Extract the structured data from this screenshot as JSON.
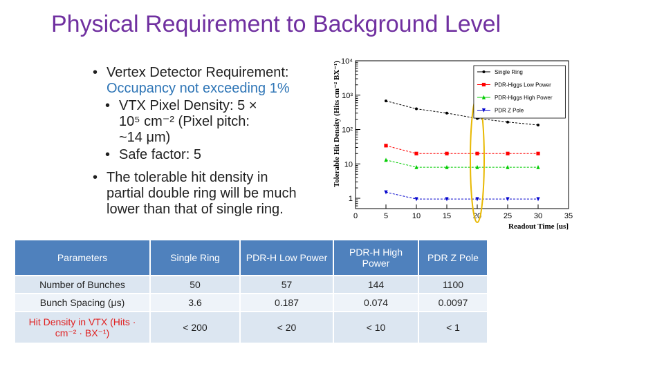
{
  "slide": {
    "title": "Physical Requirement to Background Level",
    "bullets": {
      "b1_line1": "Vertex Detector Requirement:",
      "b1_line2": "Occupancy not exceeding 1%",
      "b2_line1": "VTX Pixel Density: 5 ×",
      "b2_line2": "10⁵ cm⁻² (Pixel pitch:",
      "b2_line3": "~14 μm)",
      "b3": "Safe factor: 5",
      "b4_line1": "The tolerable hit density in",
      "b4_line2": "partial double ring will be much",
      "b4_line3": "lower than that of single ring."
    }
  },
  "table": {
    "headers": [
      "Parameters",
      "Single Ring",
      "PDR-H Low Power",
      "PDR-H High Power",
      "PDR Z Pole"
    ],
    "rows": [
      [
        "Number of Bunches",
        "50",
        "57",
        "144",
        "1100"
      ],
      [
        "Bunch Spacing (μs)",
        "3.6",
        "0.187",
        "0.074",
        "0.0097"
      ],
      [
        "Hit Density in VTX (Hits · cm⁻² · BX⁻¹)",
        "< 200",
        "< 20",
        "< 10",
        "< 1"
      ]
    ]
  },
  "chart_data": {
    "type": "scatter",
    "xlabel": "Readout Time [us]",
    "ylabel": "Tolerable Hit Density (Hits cm⁻² BX⁻¹)",
    "xlim": [
      0,
      35
    ],
    "ylim": [
      0.5,
      10000
    ],
    "yscale": "log",
    "x_ticks": [
      0,
      5,
      10,
      15,
      20,
      25,
      30,
      35
    ],
    "y_ticks": [
      {
        "value": 1,
        "label": "1"
      },
      {
        "value": 10,
        "label": "10"
      },
      {
        "value": 100,
        "label": "10²"
      },
      {
        "value": 1000,
        "label": "10³"
      },
      {
        "value": 10000,
        "label": "10⁴"
      }
    ],
    "legend_position": "top-right",
    "highlight_x": 20,
    "highlight_color": "#e8b800",
    "series": [
      {
        "name": "Single Ring",
        "color": "#000000",
        "marker": "circle",
        "x": [
          5,
          10,
          15,
          20,
          25,
          30
        ],
        "y": [
          680,
          400,
          300,
          210,
          165,
          135
        ]
      },
      {
        "name": "PDR-Higgs Low Power",
        "color": "#ff0000",
        "marker": "square",
        "x": [
          5,
          10,
          15,
          20,
          25,
          30
        ],
        "y": [
          34,
          20,
          20,
          20,
          20,
          20
        ]
      },
      {
        "name": "PDR-Higgs High Power",
        "color": "#00cc00",
        "marker": "triangle",
        "x": [
          5,
          10,
          15,
          20,
          25,
          30
        ],
        "y": [
          13,
          8,
          8,
          8,
          8,
          8
        ]
      },
      {
        "name": "PDR Z Pole",
        "color": "#0000cc",
        "marker": "triangle-down",
        "x": [
          5,
          10,
          15,
          20,
          25,
          30
        ],
        "y": [
          1.5,
          0.95,
          0.95,
          0.95,
          0.95,
          0.95
        ]
      }
    ]
  }
}
